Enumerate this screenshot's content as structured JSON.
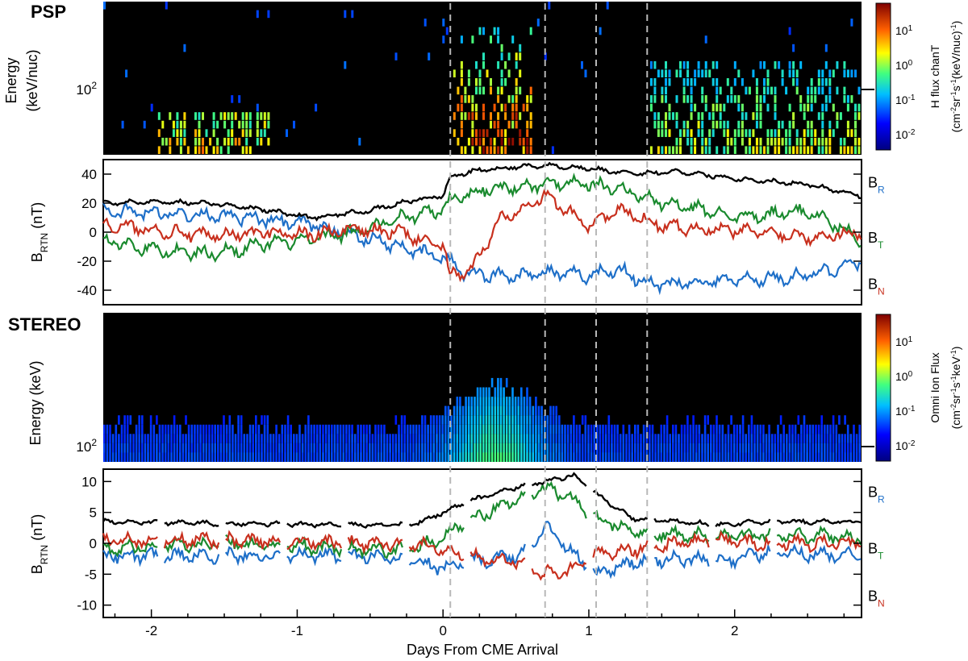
{
  "colors": {
    "br": "#1e6fc8",
    "bt": "#1a8a2e",
    "bn": "#c8301e",
    "bmag": "#000000"
  },
  "chart_data": [
    {
      "panel": "psp-spectrogram",
      "type": "heatmap",
      "title": "PSP",
      "ylabel_line1": "Energy",
      "ylabel_line2": "(keV/nuc)",
      "ytick": "10^2",
      "ylim_log": [
        30,
        600
      ],
      "x_range": [
        -2.33,
        2.87
      ],
      "x_ticks": [
        -2,
        -1,
        0,
        1,
        2
      ],
      "x_tick_labels": [
        "-2",
        "-1",
        "0",
        "1",
        "2"
      ],
      "colorbar": {
        "label_line1": "H flux chanT",
        "label_line2": "(cm^-2 sr^-1 s^-1 (keV/nuc)^-1)",
        "ticks": [
          "10^1",
          "10^0",
          "10^-1",
          "10^-2"
        ]
      },
      "activity": [
        {
          "start": -2.0,
          "end": -1.2,
          "max_energy": 70,
          "level": 0.7
        },
        {
          "start": 0.05,
          "end": 0.6,
          "max_energy": 350,
          "level": 1.0
        },
        {
          "start": 1.4,
          "end": 2.85,
          "max_energy": 200,
          "level": 0.6
        }
      ]
    },
    {
      "panel": "psp-field",
      "type": "line",
      "ylabel": "B_RTN (nT)",
      "ylim": [
        -50,
        50
      ],
      "yticks": [
        40,
        20,
        0,
        -20,
        -40
      ],
      "ytick_labels": [
        "40",
        "20",
        "0",
        "-20",
        "-40"
      ],
      "series": [
        {
          "name": "|B|",
          "key": "bmag",
          "points": [
            [
              -2.33,
              20
            ],
            [
              -2.0,
              21
            ],
            [
              -1.6,
              20
            ],
            [
              -1.2,
              15
            ],
            [
              -0.9,
              10
            ],
            [
              -0.5,
              15
            ],
            [
              -0.2,
              22
            ],
            [
              0.0,
              25
            ],
            [
              0.05,
              38
            ],
            [
              0.2,
              42
            ],
            [
              0.5,
              45
            ],
            [
              0.7,
              46
            ],
            [
              1.0,
              44
            ],
            [
              1.3,
              40
            ],
            [
              1.6,
              42
            ],
            [
              2.0,
              37
            ],
            [
              2.5,
              33
            ],
            [
              2.87,
              25
            ]
          ]
        },
        {
          "name": "BR",
          "key": "br",
          "points": [
            [
              -2.33,
              15
            ],
            [
              -2.0,
              13
            ],
            [
              -1.6,
              12
            ],
            [
              -1.2,
              8
            ],
            [
              -0.9,
              5
            ],
            [
              -0.6,
              -2
            ],
            [
              -0.3,
              -10
            ],
            [
              0.0,
              -18
            ],
            [
              0.05,
              -20
            ],
            [
              0.15,
              -28
            ],
            [
              0.4,
              -30
            ],
            [
              0.7,
              -28
            ],
            [
              1.0,
              -30
            ],
            [
              1.2,
              -25
            ],
            [
              1.4,
              -36
            ],
            [
              1.8,
              -34
            ],
            [
              2.2,
              -32
            ],
            [
              2.5,
              -30
            ],
            [
              2.87,
              -20
            ]
          ]
        },
        {
          "name": "BT",
          "key": "bt",
          "points": [
            [
              -2.33,
              -5
            ],
            [
              -2.0,
              -12
            ],
            [
              -1.6,
              -15
            ],
            [
              -1.2,
              -8
            ],
            [
              -0.9,
              -5
            ],
            [
              -0.6,
              0
            ],
            [
              -0.3,
              10
            ],
            [
              0.0,
              15
            ],
            [
              0.05,
              22
            ],
            [
              0.3,
              30
            ],
            [
              0.6,
              32
            ],
            [
              0.9,
              35
            ],
            [
              1.2,
              30
            ],
            [
              1.5,
              20
            ],
            [
              1.8,
              15
            ],
            [
              2.1,
              10
            ],
            [
              2.5,
              15
            ],
            [
              2.87,
              -5
            ]
          ]
        },
        {
          "name": "BN",
          "key": "bn",
          "points": [
            [
              -2.33,
              5
            ],
            [
              -2.0,
              2
            ],
            [
              -1.6,
              -3
            ],
            [
              -1.2,
              0
            ],
            [
              -0.9,
              -2
            ],
            [
              -0.6,
              2
            ],
            [
              -0.3,
              0
            ],
            [
              0.0,
              -10
            ],
            [
              0.05,
              -30
            ],
            [
              0.2,
              -25
            ],
            [
              0.4,
              10
            ],
            [
              0.7,
              25
            ],
            [
              1.0,
              5
            ],
            [
              1.2,
              15
            ],
            [
              1.5,
              5
            ],
            [
              1.8,
              2
            ],
            [
              2.2,
              0
            ],
            [
              2.5,
              -3
            ],
            [
              2.87,
              0
            ]
          ]
        }
      ],
      "legend": [
        {
          "base": "B",
          "sub": "R",
          "key": "br"
        },
        {
          "base": "B",
          "sub": "T",
          "key": "bt"
        },
        {
          "base": "B",
          "sub": "N",
          "key": "bn"
        }
      ]
    },
    {
      "panel": "stereo-spectrogram",
      "type": "heatmap",
      "title": "STEREO",
      "ylabel": "Energy (keV)",
      "ytick": "10^2",
      "ylim_log": [
        75,
        1200
      ],
      "colorbar": {
        "label_line1": "Omni Ion Flux",
        "label_line2": "(cm^-2 sr^-1 s^-1 keV^-1)",
        "ticks": [
          "10^1",
          "10^0",
          "10^-1",
          "10^-2"
        ]
      },
      "enhancement": {
        "peak_day": 0.35,
        "width": 0.3,
        "max_energy": 320
      }
    },
    {
      "panel": "stereo-field",
      "type": "line",
      "ylabel": "B_RTN (nT)",
      "ylim": [
        -12,
        12
      ],
      "yticks": [
        10,
        5,
        0,
        -5,
        -10
      ],
      "ytick_labels": [
        "10",
        "5",
        "0",
        "-5",
        "-10"
      ],
      "xlabel": "Days From CME Arrival",
      "x_ticks": [
        -2,
        -1,
        0,
        1,
        2
      ],
      "x_tick_labels": [
        "-2",
        "-1",
        "0",
        "1",
        "2"
      ],
      "series": [
        {
          "name": "|B|",
          "key": "bmag",
          "points": [
            [
              -2.33,
              3.5
            ],
            [
              -1.5,
              3.2
            ],
            [
              -0.6,
              3.0
            ],
            [
              -0.2,
              3.0
            ],
            [
              0.0,
              5
            ],
            [
              0.2,
              7
            ],
            [
              0.5,
              9
            ],
            [
              0.7,
              10
            ],
            [
              0.9,
              11
            ],
            [
              1.05,
              8
            ],
            [
              1.3,
              4
            ],
            [
              1.6,
              3.5
            ],
            [
              1.9,
              3.0
            ],
            [
              2.2,
              3.5
            ],
            [
              2.87,
              3.5
            ]
          ]
        },
        {
          "name": "BR",
          "key": "br",
          "points": [
            [
              -2.33,
              -2
            ],
            [
              -1.5,
              -2
            ],
            [
              -0.6,
              -2
            ],
            [
              -0.2,
              -3
            ],
            [
              0.0,
              -4
            ],
            [
              0.2,
              -3
            ],
            [
              0.5,
              -2
            ],
            [
              0.6,
              -1
            ],
            [
              0.7,
              3
            ],
            [
              0.9,
              -2
            ],
            [
              1.05,
              -5
            ],
            [
              1.3,
              -3
            ],
            [
              1.6,
              -2.5
            ],
            [
              1.9,
              -3
            ],
            [
              2.2,
              -1.5
            ],
            [
              2.87,
              -2
            ]
          ]
        },
        {
          "name": "BT",
          "key": "bt",
          "points": [
            [
              -2.33,
              -1
            ],
            [
              -1.5,
              0
            ],
            [
              -0.6,
              -1
            ],
            [
              -0.2,
              -1
            ],
            [
              0.0,
              1
            ],
            [
              0.2,
              4
            ],
            [
              0.5,
              7
            ],
            [
              0.7,
              9
            ],
            [
              0.9,
              7
            ],
            [
              1.05,
              4
            ],
            [
              1.3,
              2
            ],
            [
              1.6,
              1.5
            ],
            [
              1.9,
              1
            ],
            [
              2.2,
              1.5
            ],
            [
              2.87,
              1
            ]
          ]
        },
        {
          "name": "BN",
          "key": "bn",
          "points": [
            [
              -2.33,
              0.5
            ],
            [
              -1.5,
              0.5
            ],
            [
              -0.6,
              0
            ],
            [
              -0.2,
              0
            ],
            [
              0.0,
              -1
            ],
            [
              0.2,
              -2
            ],
            [
              0.5,
              -3
            ],
            [
              0.7,
              -5
            ],
            [
              0.9,
              -4
            ],
            [
              1.05,
              -2
            ],
            [
              1.3,
              -1
            ],
            [
              1.6,
              0
            ],
            [
              1.9,
              0.5
            ],
            [
              2.2,
              0
            ],
            [
              2.87,
              0
            ]
          ]
        }
      ],
      "legend": [
        {
          "base": "B",
          "sub": "R",
          "key": "br"
        },
        {
          "base": "B",
          "sub": "T",
          "key": "bt"
        },
        {
          "base": "B",
          "sub": "N",
          "key": "bn"
        }
      ]
    }
  ],
  "event_markers_days": [
    0.05,
    0.7,
    1.05,
    1.4
  ]
}
